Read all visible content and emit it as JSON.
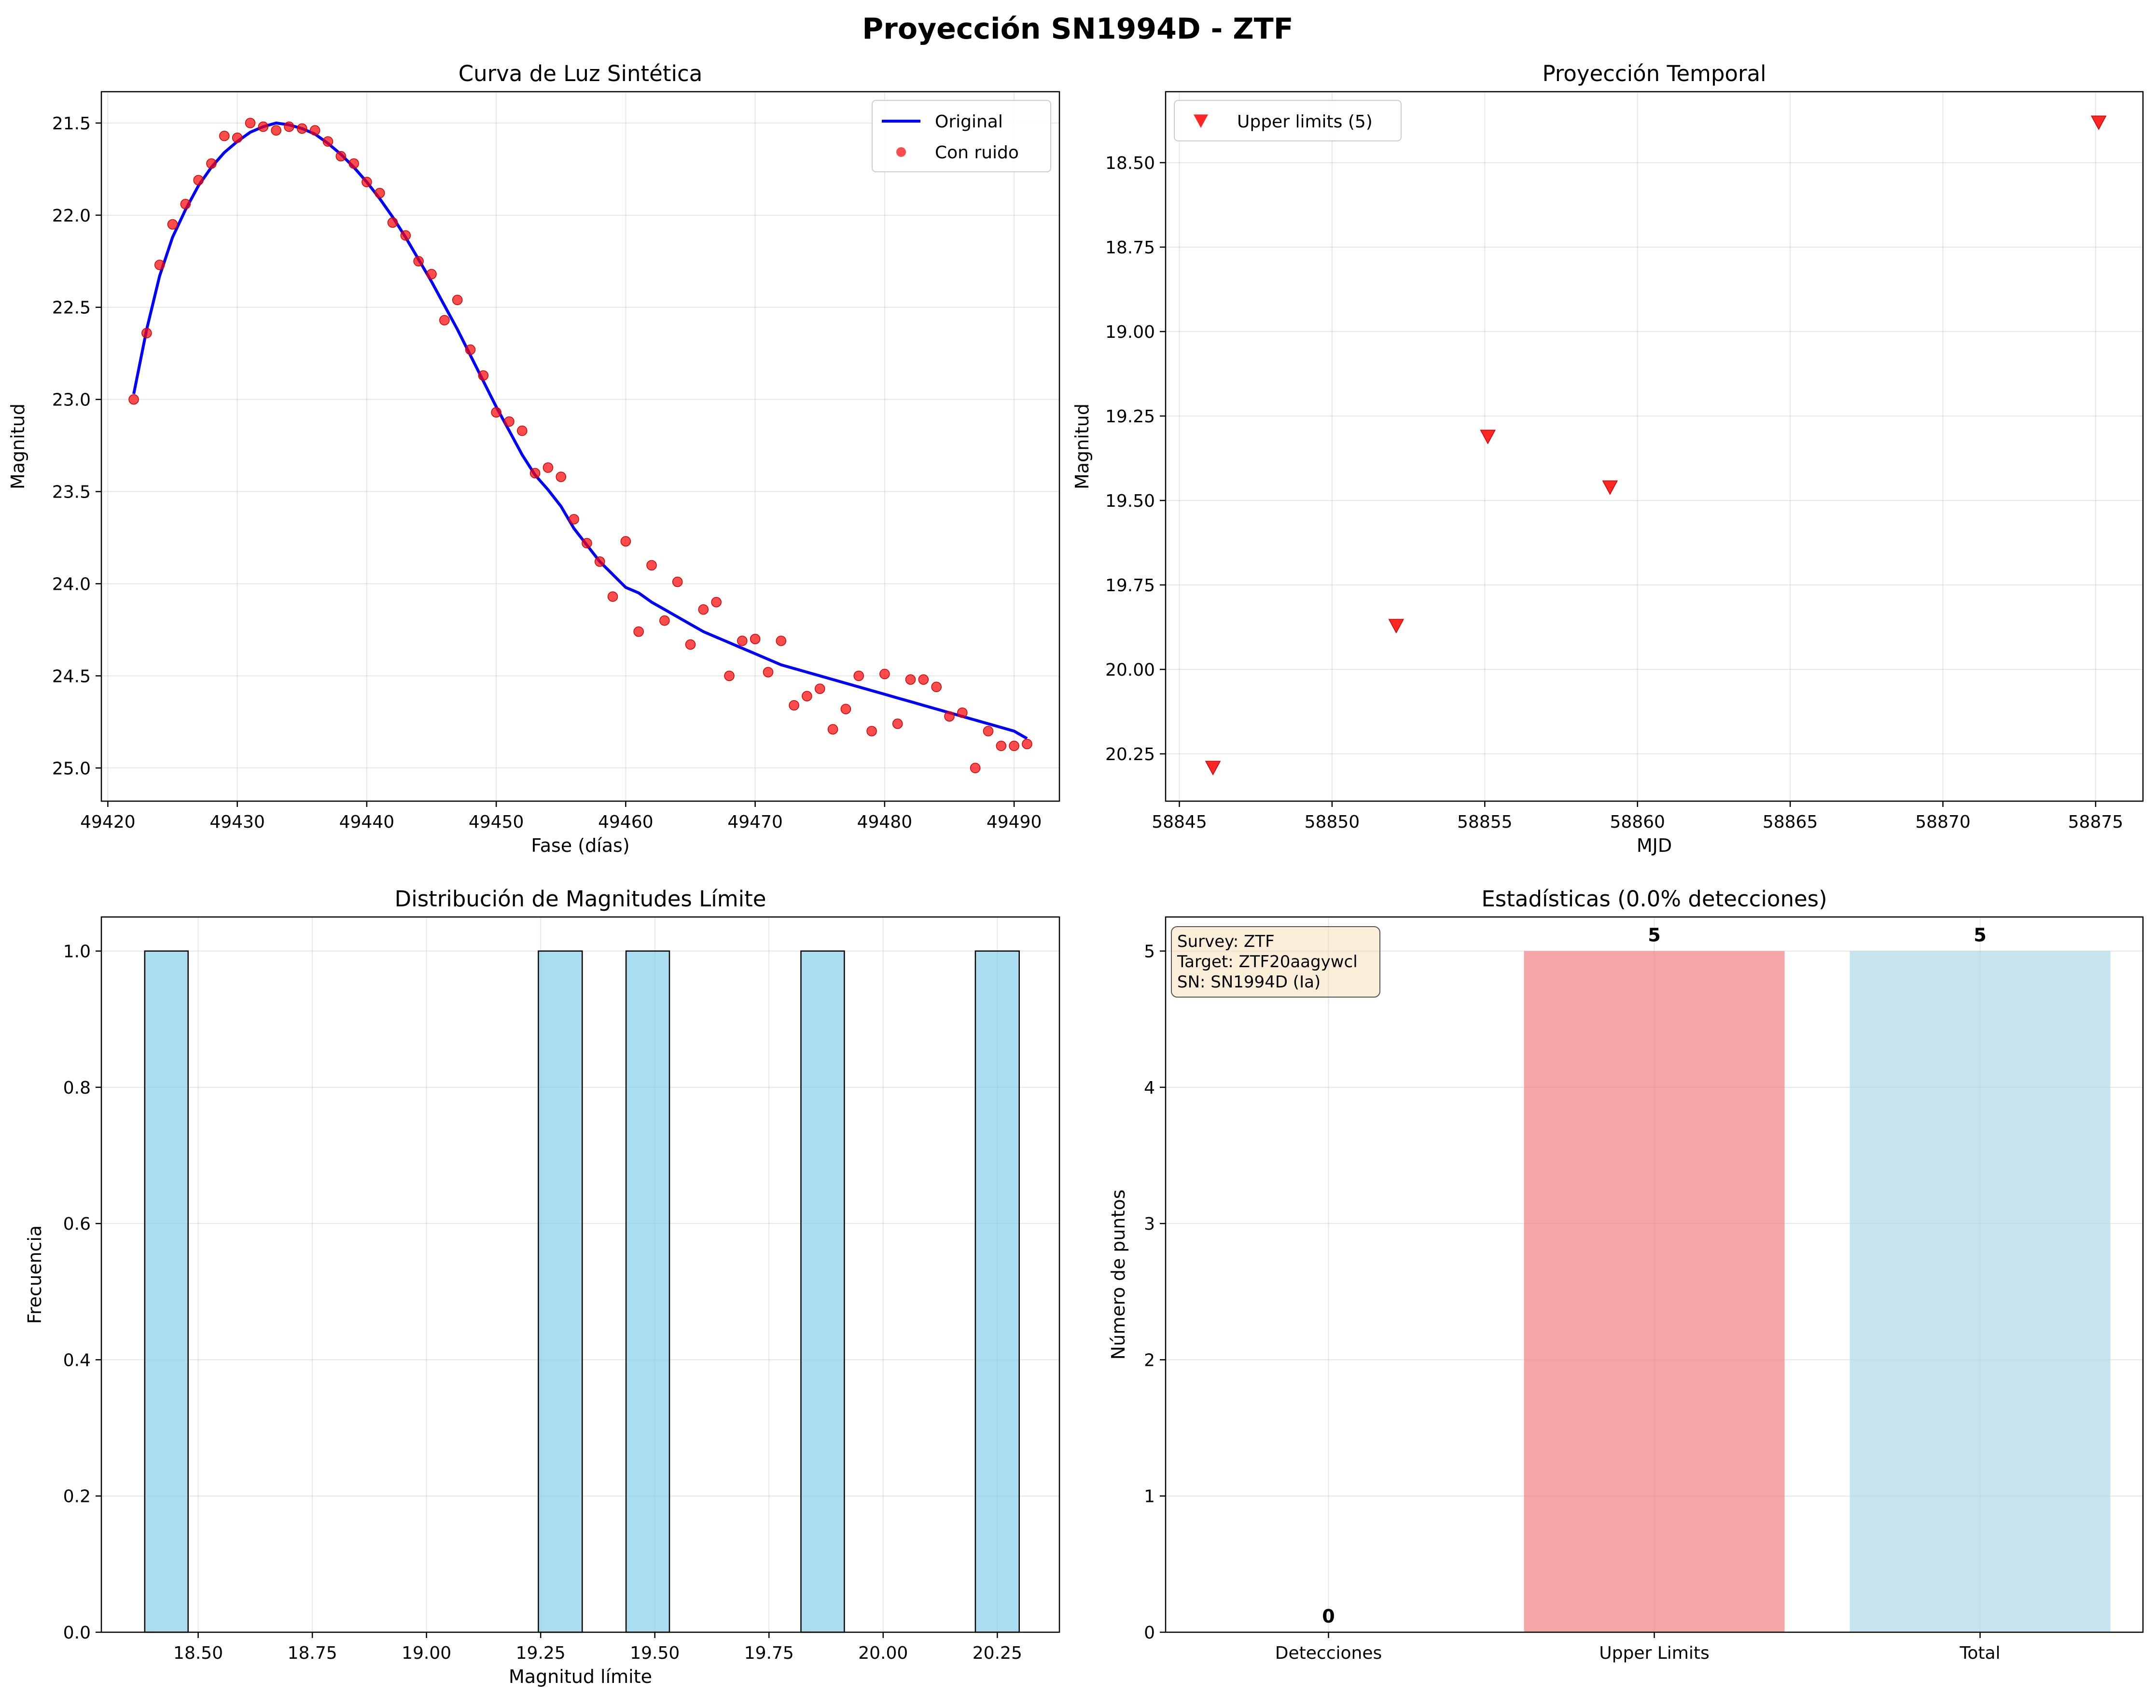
{
  "figure": {
    "title": "Proyección SN1994D - ZTF"
  },
  "chart_data": [
    {
      "id": "lightcurve",
      "type": "line",
      "title": "Curva de Luz Sintética",
      "xlabel": "Fase (días)",
      "ylabel": "Magnitud",
      "xlim": [
        49419.5,
        49493.5
      ],
      "ylim": [
        25.18,
        21.33
      ],
      "y_inverted": true,
      "xticks": [
        49420,
        49430,
        49440,
        49450,
        49460,
        49470,
        49480,
        49490
      ],
      "yticks": [
        21.5,
        22.0,
        22.5,
        23.0,
        23.5,
        24.0,
        24.5,
        25.0
      ],
      "ytick_labels": [
        "21.5",
        "22.0",
        "22.5",
        "23.0",
        "23.5",
        "24.0",
        "24.5",
        "25.0"
      ],
      "legend": {
        "placement": "top-right",
        "entries": [
          "Original",
          "Con ruido"
        ]
      },
      "grid": true,
      "series": [
        {
          "name": "Original",
          "kind": "line",
          "color": "#0000ff",
          "x": [
            49422,
            49423,
            49424,
            49425,
            49426,
            49427,
            49428,
            49429,
            49430,
            49431,
            49432,
            49433,
            49434,
            49435,
            49436,
            49437,
            49438,
            49439,
            49440,
            49441,
            49442,
            49443,
            49444,
            49445,
            49446,
            49447,
            49448,
            49449,
            49450,
            49451,
            49452,
            49453,
            49454,
            49455,
            49456,
            49457,
            49458,
            49459,
            49460,
            49461,
            49462,
            49463,
            49464,
            49465,
            49466,
            49467,
            49468,
            49469,
            49470,
            49471,
            49472,
            49473,
            49474,
            49475,
            49476,
            49477,
            49478,
            49479,
            49480,
            49481,
            49482,
            49483,
            49484,
            49485,
            49486,
            49487,
            49488,
            49489,
            49490,
            49491
          ],
          "y": [
            22.97,
            22.62,
            22.33,
            22.12,
            21.97,
            21.84,
            21.74,
            21.66,
            21.6,
            21.55,
            21.52,
            21.5,
            21.51,
            21.53,
            21.56,
            21.61,
            21.67,
            21.74,
            21.82,
            21.91,
            22.01,
            22.12,
            22.24,
            22.36,
            22.49,
            22.62,
            22.76,
            22.9,
            23.04,
            23.17,
            23.3,
            23.41,
            23.49,
            23.58,
            23.7,
            23.79,
            23.88,
            23.95,
            24.02,
            24.05,
            24.1,
            24.14,
            24.18,
            24.22,
            24.26,
            24.29,
            24.32,
            24.35,
            24.38,
            24.41,
            24.44,
            24.46,
            24.48,
            24.5,
            24.52,
            24.54,
            24.56,
            24.58,
            24.6,
            24.62,
            24.64,
            24.66,
            24.68,
            24.7,
            24.72,
            24.74,
            24.76,
            24.78,
            24.8,
            24.84
          ]
        },
        {
          "name": "Con ruido",
          "kind": "scatter",
          "color": "#ff0000",
          "x": [
            49422,
            49423,
            49424,
            49425,
            49426,
            49427,
            49428,
            49429,
            49430,
            49431,
            49432,
            49433,
            49434,
            49435,
            49436,
            49437,
            49438,
            49439,
            49440,
            49441,
            49442,
            49443,
            49444,
            49445,
            49446,
            49447,
            49448,
            49449,
            49450,
            49451,
            49452,
            49453,
            49454,
            49455,
            49456,
            49457,
            49458,
            49459,
            49460,
            49461,
            49462,
            49463,
            49464,
            49465,
            49466,
            49467,
            49468,
            49469,
            49470,
            49471,
            49472,
            49473,
            49474,
            49475,
            49476,
            49477,
            49478,
            49479,
            49480,
            49481,
            49482,
            49483,
            49484,
            49485,
            49486,
            49487,
            49488,
            49489,
            49490,
            49491
          ],
          "y": [
            23.0,
            22.64,
            22.27,
            22.05,
            21.94,
            21.81,
            21.72,
            21.57,
            21.58,
            21.5,
            21.52,
            21.54,
            21.52,
            21.53,
            21.54,
            21.6,
            21.68,
            21.72,
            21.82,
            21.88,
            22.04,
            22.11,
            22.25,
            22.32,
            22.57,
            22.46,
            22.73,
            22.87,
            23.07,
            23.12,
            23.17,
            23.4,
            23.37,
            23.42,
            23.65,
            23.78,
            23.88,
            24.07,
            23.77,
            24.26,
            23.9,
            24.2,
            23.99,
            24.33,
            24.14,
            24.1,
            24.5,
            24.31,
            24.3,
            24.48,
            24.31,
            24.66,
            24.61,
            24.57,
            24.79,
            24.68,
            24.5,
            24.8,
            24.49,
            24.76,
            24.52,
            24.52,
            24.56,
            24.72,
            24.7,
            25.0,
            24.8,
            24.88,
            24.88,
            24.87
          ]
        }
      ]
    },
    {
      "id": "projection",
      "type": "scatter",
      "title": "Proyección Temporal",
      "xlabel": "MJD",
      "ylabel": "Magnitud",
      "xlim": [
        58844.55,
        58876.55
      ],
      "ylim": [
        20.39,
        18.29
      ],
      "y_inverted": true,
      "xticks": [
        58845,
        58850,
        58855,
        58860,
        58865,
        58870,
        58875
      ],
      "yticks": [
        18.5,
        18.75,
        19.0,
        19.25,
        19.5,
        19.75,
        20.0,
        20.25
      ],
      "ytick_labels": [
        "18.50",
        "18.75",
        "19.00",
        "19.25",
        "19.50",
        "19.75",
        "20.00",
        "20.25"
      ],
      "legend": {
        "placement": "top-left",
        "entries": [
          "Upper limits (5)"
        ]
      },
      "grid": true,
      "series": [
        {
          "name": "Upper limits (5)",
          "marker": "triangle-down",
          "color": "#ff0000",
          "x": [
            58846.1,
            58852.1,
            58855.1,
            58859.1,
            58875.1
          ],
          "y": [
            20.29,
            19.87,
            19.31,
            19.46,
            18.38
          ]
        }
      ]
    },
    {
      "id": "histogram",
      "type": "bar",
      "title": "Distribución de Magnitudes Límite",
      "xlabel": "Magnitud límite",
      "ylabel": "Frecuencia",
      "xlim": [
        18.288,
        20.386
      ],
      "ylim": [
        0,
        1.05
      ],
      "xticks": [
        18.5,
        18.75,
        19.0,
        19.25,
        19.5,
        19.75,
        20.0,
        20.25
      ],
      "xtick_labels": [
        "18.50",
        "18.75",
        "19.00",
        "19.25",
        "19.50",
        "19.75",
        "20.00",
        "20.25"
      ],
      "yticks": [
        0,
        0.2,
        0.4,
        0.6,
        0.8,
        1.0
      ],
      "ytick_labels": [
        "0.0",
        "0.2",
        "0.4",
        "0.6",
        "0.8",
        "1.0"
      ],
      "grid": true,
      "bar_color": "#87ceeb",
      "bins": [
        {
          "x0": 18.383,
          "x1": 18.478,
          "count": 1
        },
        {
          "x0": 19.245,
          "x1": 19.341,
          "count": 1
        },
        {
          "x0": 19.437,
          "x1": 19.532,
          "count": 1
        },
        {
          "x0": 19.82,
          "x1": 19.915,
          "count": 1
        },
        {
          "x0": 20.202,
          "x1": 20.298,
          "count": 1
        }
      ]
    },
    {
      "id": "stats",
      "type": "bar",
      "title": "Estadísticas (0.0% detecciones)",
      "xlabel": "",
      "ylabel": "Número de puntos",
      "ylim": [
        0,
        5.25
      ],
      "yticks": [
        0,
        1,
        2,
        3,
        4,
        5
      ],
      "ytick_labels": [
        "0",
        "1",
        "2",
        "3",
        "4",
        "5"
      ],
      "grid": true,
      "categories": [
        "Detecciones",
        "Upper Limits",
        "Total"
      ],
      "values": [
        0,
        5,
        5
      ],
      "value_labels": [
        "0",
        "5",
        "5"
      ],
      "colors": [
        "#90ee90",
        "#f08080",
        "#add8e6"
      ],
      "info_box": [
        "Survey: ZTF",
        "Target: ZTF20aagywcl",
        "SN: SN1994D (Ia)"
      ]
    }
  ]
}
